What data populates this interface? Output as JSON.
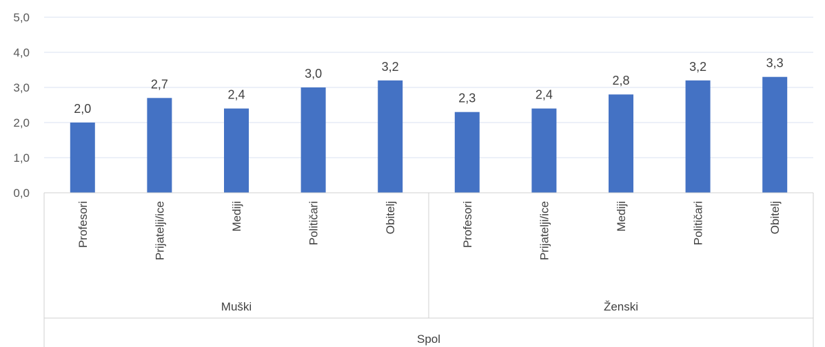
{
  "chart_data": {
    "type": "bar",
    "title": "",
    "xlabel": "Spol",
    "ylabel": "",
    "ylim": [
      0,
      5
    ],
    "yticks": [
      "0,0",
      "1,0",
      "2,0",
      "3,0",
      "4,0",
      "5,0"
    ],
    "grid": true,
    "legend": "none",
    "bar_color": "#4472C4",
    "groups": [
      {
        "name": "Muški",
        "categories": [
          "Profesori",
          "Prijatelji/ice",
          "Mediji",
          "Političari",
          "Obitelj"
        ],
        "values": [
          2.0,
          2.7,
          2.4,
          3.0,
          3.2
        ],
        "value_labels": [
          "2,0",
          "2,7",
          "2,4",
          "3,0",
          "3,2"
        ]
      },
      {
        "name": "Ženski",
        "categories": [
          "Profesori",
          "Prijatelji/ice",
          "Mediji",
          "Političari",
          "Obitelj"
        ],
        "values": [
          2.3,
          2.4,
          2.8,
          3.2,
          3.3
        ],
        "value_labels": [
          "2,3",
          "2,4",
          "2,8",
          "3,2",
          "3,3"
        ]
      }
    ]
  }
}
